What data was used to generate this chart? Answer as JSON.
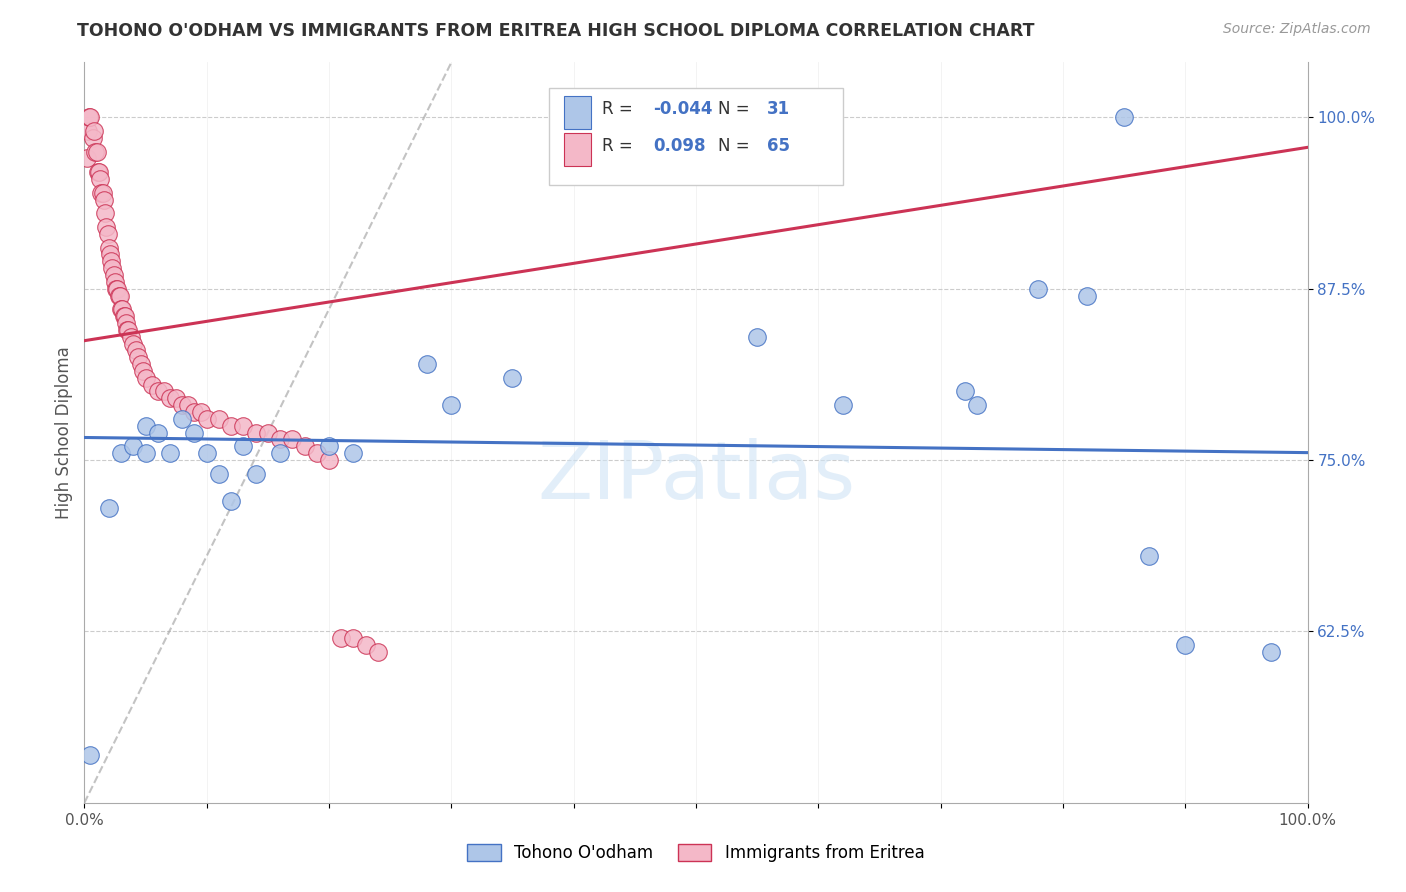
{
  "title": "TOHONO O'ODHAM VS IMMIGRANTS FROM ERITREA HIGH SCHOOL DIPLOMA CORRELATION CHART",
  "source": "Source: ZipAtlas.com",
  "ylabel": "High School Diploma",
  "blue_label": "Tohono O'odham",
  "pink_label": "Immigrants from Eritrea",
  "blue_R": -0.044,
  "blue_N": 31,
  "pink_R": 0.098,
  "pink_N": 65,
  "blue_color": "#aec6e8",
  "pink_color": "#f4b8c8",
  "blue_line_color": "#4472c4",
  "pink_line_color": "#cc3355",
  "watermark": "ZIPatlas",
  "xlim": [
    0.0,
    1.0
  ],
  "ylim": [
    0.5,
    1.04
  ],
  "blue_x": [
    0.005,
    0.02,
    0.03,
    0.04,
    0.05,
    0.05,
    0.06,
    0.07,
    0.08,
    0.09,
    0.1,
    0.11,
    0.12,
    0.13,
    0.14,
    0.16,
    0.2,
    0.22,
    0.28,
    0.3,
    0.35,
    0.55,
    0.62,
    0.72,
    0.73,
    0.78,
    0.82,
    0.85,
    0.87,
    0.9,
    0.97
  ],
  "blue_y": [
    0.535,
    0.715,
    0.755,
    0.76,
    0.755,
    0.775,
    0.77,
    0.755,
    0.78,
    0.77,
    0.755,
    0.74,
    0.72,
    0.76,
    0.74,
    0.755,
    0.76,
    0.755,
    0.82,
    0.79,
    0.81,
    0.84,
    0.79,
    0.8,
    0.79,
    0.875,
    0.87,
    1.0,
    0.68,
    0.615,
    0.61
  ],
  "pink_x": [
    0.002,
    0.003,
    0.004,
    0.005,
    0.007,
    0.008,
    0.009,
    0.01,
    0.011,
    0.012,
    0.013,
    0.014,
    0.015,
    0.016,
    0.017,
    0.018,
    0.019,
    0.02,
    0.021,
    0.022,
    0.023,
    0.024,
    0.025,
    0.026,
    0.027,
    0.028,
    0.029,
    0.03,
    0.031,
    0.032,
    0.033,
    0.034,
    0.035,
    0.036,
    0.038,
    0.04,
    0.042,
    0.044,
    0.046,
    0.048,
    0.05,
    0.055,
    0.06,
    0.065,
    0.07,
    0.075,
    0.08,
    0.085,
    0.09,
    0.095,
    0.1,
    0.11,
    0.12,
    0.13,
    0.14,
    0.15,
    0.16,
    0.17,
    0.18,
    0.19,
    0.2,
    0.21,
    0.22,
    0.23,
    0.24
  ],
  "pink_y": [
    0.97,
    0.99,
    1.0,
    1.0,
    0.985,
    0.99,
    0.975,
    0.975,
    0.96,
    0.96,
    0.955,
    0.945,
    0.945,
    0.94,
    0.93,
    0.92,
    0.915,
    0.905,
    0.9,
    0.895,
    0.89,
    0.885,
    0.88,
    0.875,
    0.875,
    0.87,
    0.87,
    0.86,
    0.86,
    0.855,
    0.855,
    0.85,
    0.845,
    0.845,
    0.84,
    0.835,
    0.83,
    0.825,
    0.82,
    0.815,
    0.81,
    0.805,
    0.8,
    0.8,
    0.795,
    0.795,
    0.79,
    0.79,
    0.785,
    0.785,
    0.78,
    0.78,
    0.775,
    0.775,
    0.77,
    0.77,
    0.765,
    0.765,
    0.76,
    0.755,
    0.75,
    0.62,
    0.62,
    0.615,
    0.61
  ]
}
